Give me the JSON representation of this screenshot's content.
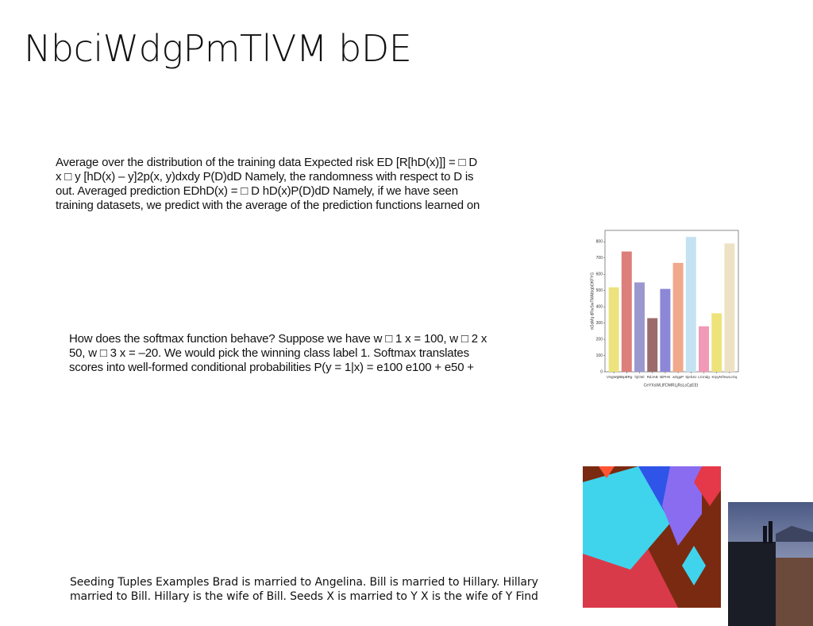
{
  "title": "NbciWdgPmTlVM bDE",
  "paragraphs": [
    [
      "Average over the distribution of the training data Expected risk ED [R[hD(x)]] = □ D",
      "x □ y [hD(x) – y]2p(x, y)dxdy P(D)dD Namely, the randomness with respect to D is",
      "out. Averaged prediction EDhD(x) = □ D hD(x)P(D)dD Namely, if we have seen",
      "training datasets, we predict with the average of the prediction functions learned on"
    ],
    [
      "How does the softmax function behave? Suppose we have w □ 1 x = 100, w □ 2 x",
      "50, w □ 3 x = –20. We would pick the winning class label 1. Softmax translates",
      "scores into well-formed conditional probabilities P(y = 1|x) = e100 e100 + e50 +"
    ],
    [
      "Seeding Tuples Examples Brad is married to Angelina. Bill is married to Hillary. Hillary",
      "married to Bill. Hillary is the wife of Bill. Seeds X is married to Y X is the wife of Y Find"
    ]
  ],
  "chart_data": {
    "type": "bar",
    "categories": [
      "VSgWgB",
      "BpBRg",
      "hjCWi",
      "RdJAB",
      "BiPHK",
      "aOgpP",
      "SjelUU",
      "LCmdg",
      "KrpyN",
      "fmwLcGq"
    ],
    "values": [
      520,
      740,
      550,
      330,
      510,
      670,
      830,
      280,
      360,
      790
    ],
    "colors": [
      "#ece27e",
      "#dc7e7a",
      "#9a98cf",
      "#9c6b6b",
      "#8c87d6",
      "#f0a98a",
      "#c5e2f2",
      "#f09ab8",
      "#eee37b",
      "#ede3c4"
    ],
    "xlabel": "CeYXsWLIFDMRLjRsLsCpEEt",
    "ylabel": "nOaMq dRwSwTMAtbqbOKFYG",
    "ylim": [
      0,
      870
    ],
    "yticks": [
      0,
      100,
      200,
      300,
      400,
      500,
      600,
      700,
      800
    ]
  }
}
